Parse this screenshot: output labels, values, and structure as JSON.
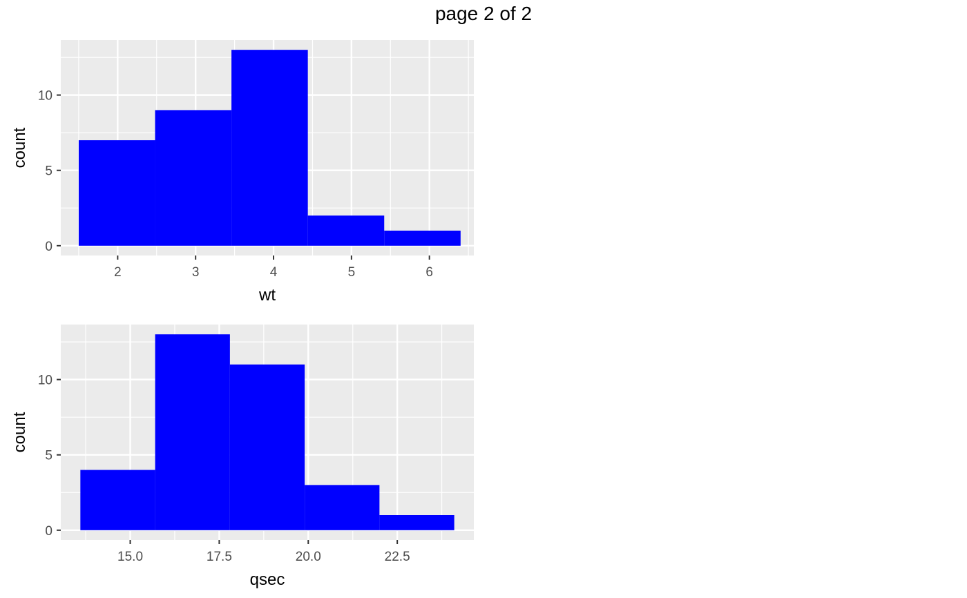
{
  "page_title": "page 2 of 2",
  "colors": {
    "panel": "#ebebeb",
    "grid_major": "#ffffff",
    "bar": "#0000ff",
    "tick": "#333333"
  },
  "chart_data": [
    {
      "type": "bar",
      "xlabel": "wt",
      "ylabel": "count",
      "xlim": [
        1.27,
        6.57
      ],
      "ylim": [
        -0.65,
        13.65
      ],
      "x_ticks": [
        2,
        3,
        4,
        5,
        6
      ],
      "x_tick_labels": [
        "2",
        "3",
        "4",
        "5",
        "6"
      ],
      "y_ticks": [
        0,
        5,
        10
      ],
      "y_tick_labels": [
        "0",
        "5",
        "10"
      ],
      "grid": true,
      "bins": [
        {
          "xmin": 1.5,
          "xmax": 2.48,
          "count": 7
        },
        {
          "xmin": 2.48,
          "xmax": 3.46,
          "count": 9
        },
        {
          "xmin": 3.46,
          "xmax": 4.44,
          "count": 13
        },
        {
          "xmin": 4.44,
          "xmax": 5.42,
          "count": 2
        },
        {
          "xmin": 5.42,
          "xmax": 6.4,
          "count": 1
        }
      ]
    },
    {
      "type": "bar",
      "xlabel": "qsec",
      "ylabel": "count",
      "xlim": [
        13.05,
        24.65
      ],
      "ylim": [
        -0.65,
        13.65
      ],
      "x_ticks": [
        15,
        17.5,
        20,
        22.5
      ],
      "x_tick_labels": [
        "15.0",
        "17.5",
        "20.0",
        "22.5"
      ],
      "y_ticks": [
        0,
        5,
        10
      ],
      "y_tick_labels": [
        "0",
        "5",
        "10"
      ],
      "grid": true,
      "bins": [
        {
          "xmin": 13.6,
          "xmax": 15.7,
          "count": 4
        },
        {
          "xmin": 15.7,
          "xmax": 17.8,
          "count": 13
        },
        {
          "xmin": 17.8,
          "xmax": 19.9,
          "count": 11
        },
        {
          "xmin": 19.9,
          "xmax": 22.0,
          "count": 3
        },
        {
          "xmin": 22.0,
          "xmax": 24.1,
          "count": 1
        }
      ]
    }
  ]
}
